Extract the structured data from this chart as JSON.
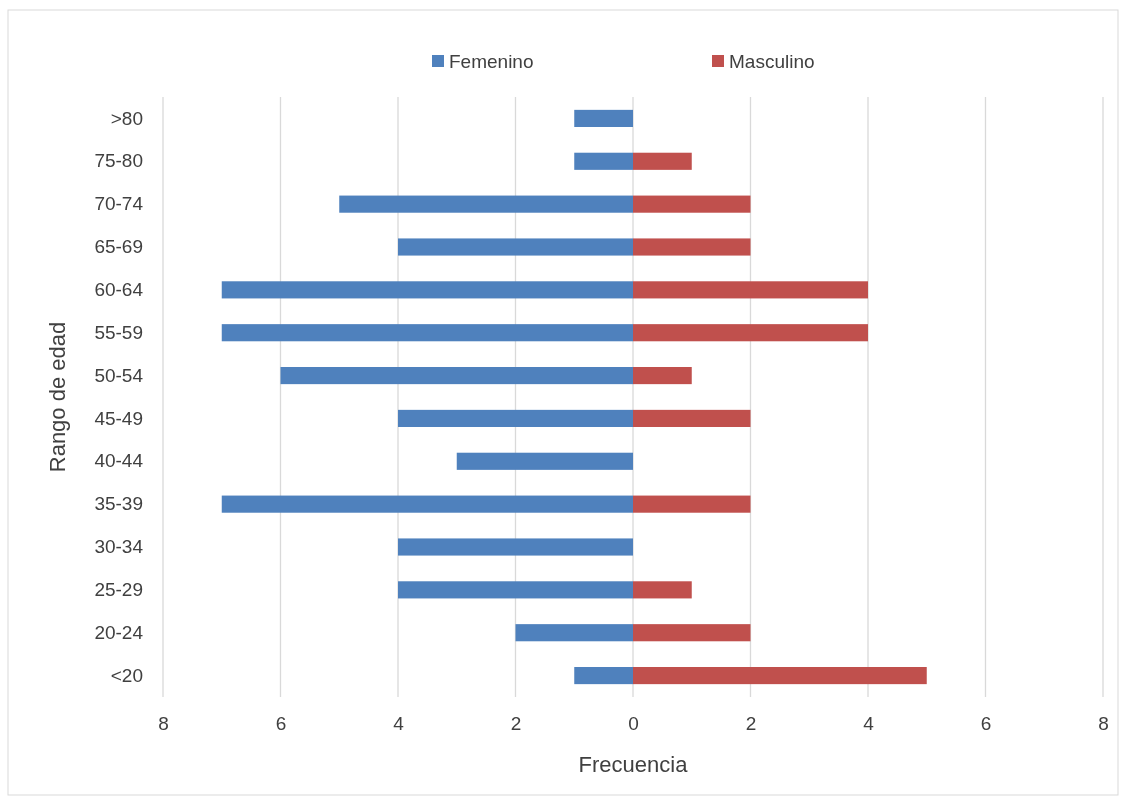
{
  "chart_data": {
    "type": "bar",
    "orientation": "horizontal",
    "stacked": true,
    "xlabel": "Frecuencia",
    "ylabel": "Rango de edad",
    "categories": [
      ">80",
      "75-80",
      "70-74",
      "65-69",
      "60-64",
      "55-59",
      "50-54",
      "45-49",
      "40-44",
      "35-39",
      "30-34",
      "25-29",
      "20-24",
      "<20"
    ],
    "series": [
      {
        "name": "Femenino",
        "color": "#4f81bd",
        "values": [
          -1,
          -1,
          -5,
          -4,
          -7,
          -7,
          -6,
          -4,
          -3,
          -7,
          -4,
          -4,
          -2,
          -1
        ]
      },
      {
        "name": "Masculino",
        "color": "#c0504d",
        "values": [
          0,
          1,
          2,
          2,
          4,
          4,
          1,
          2,
          0,
          2,
          0,
          1,
          2,
          5
        ]
      }
    ],
    "xlim": [
      -8,
      8
    ],
    "xticks": [
      {
        "value": -8,
        "label": "8"
      },
      {
        "value": -6,
        "label": "6"
      },
      {
        "value": -4,
        "label": "4"
      },
      {
        "value": -2,
        "label": "2"
      },
      0,
      2,
      4,
      6,
      8
    ],
    "grid": "x",
    "legend": "top"
  }
}
